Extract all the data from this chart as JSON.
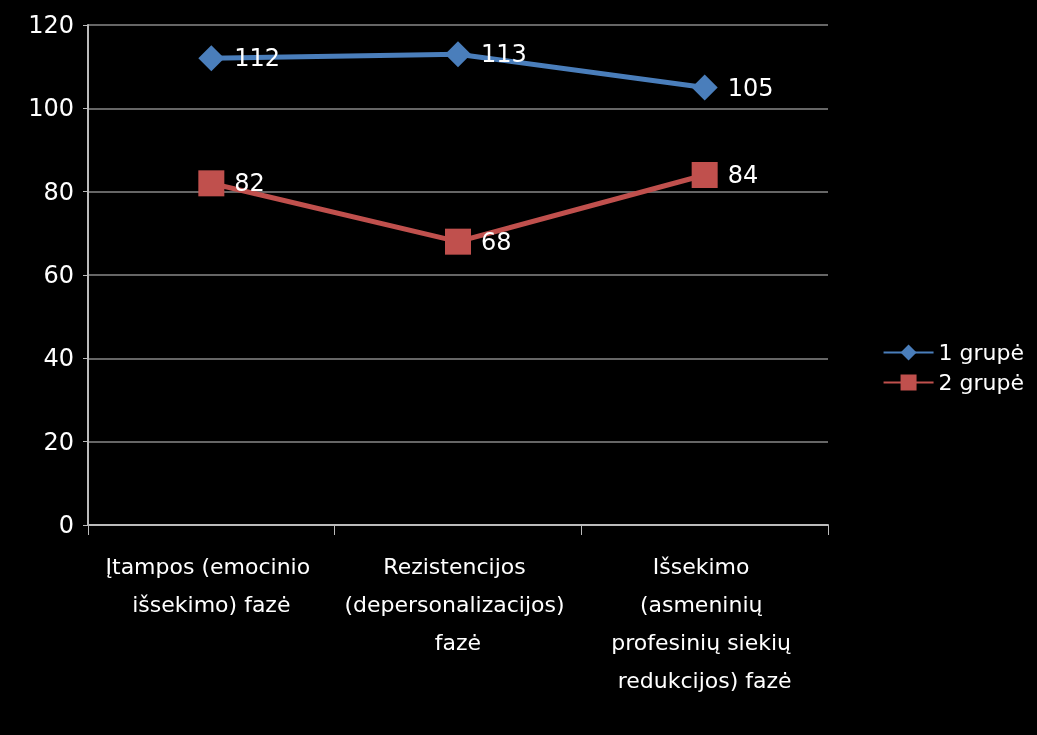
{
  "chart_data": {
    "type": "line",
    "categories": [
      "Įtampos (emocinio išsekimo) fazė",
      "Rezistencijos (depersonalizacijos) fazė",
      "Išsekimo (asmeninių profesinių siekių redukcijos) fazė"
    ],
    "series": [
      {
        "name": "1 grupė",
        "color": "#4a7ebb",
        "marker": "diamond",
        "values": [
          112,
          113,
          105
        ]
      },
      {
        "name": "2 grupė",
        "color": "#c0504d",
        "marker": "square",
        "values": [
          82,
          68,
          84
        ]
      }
    ],
    "ylim": [
      0,
      120
    ],
    "yticks": [
      0,
      20,
      40,
      60,
      80,
      100,
      120
    ],
    "grid": "y",
    "legend": "right",
    "data_labels": true
  }
}
